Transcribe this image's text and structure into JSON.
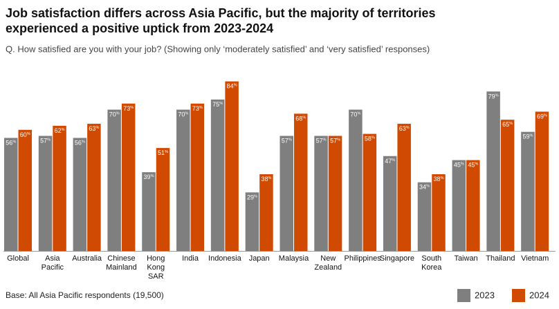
{
  "chart_data": {
    "type": "bar",
    "title": "Job satisfaction differs across Asia Pacific, but the majority of territories experienced a positive uptick from 2023-2024",
    "subtitle": "Q. How satisfied are you with your job? (Showing only ‘moderately satisfied’ and ‘very satisfied’ responses)",
    "footnote": "Base: All Asia Pacific respondents (19,500)",
    "categories": [
      "Global",
      "Asia Pacific",
      "Australia",
      "Chinese Mainland",
      "Hong Kong SAR",
      "India",
      "Indonesia",
      "Japan",
      "Malaysia",
      "New Zealand",
      "Philippines",
      "Singapore",
      "South Korea",
      "Taiwan",
      "Thailand",
      "Vietnam"
    ],
    "series": [
      {
        "name": "2023",
        "color": "#7f7f7f",
        "values": [
          56,
          57,
          56,
          70,
          39,
          70,
          75,
          29,
          57,
          57,
          70,
          47,
          34,
          45,
          79,
          59
        ],
        "value_labels": [
          "56%",
          "57%",
          "56%",
          "70%",
          "39%",
          "70%",
          "75%",
          "29%",
          "57%",
          "57%",
          "70%",
          "47%",
          "34%",
          "45%",
          "79%",
          "59%"
        ]
      },
      {
        "name": "2024",
        "color": "#d04a02",
        "values": [
          60,
          62,
          63,
          73,
          51,
          73,
          84,
          38,
          68,
          57,
          58,
          63,
          38,
          45,
          65,
          69
        ],
        "value_labels": [
          "60%",
          "62%",
          "63%",
          "73%",
          "51%",
          "73%",
          "84%",
          "38%",
          "68%",
          "57%",
          "58%",
          "63%",
          "38%",
          "45%",
          "65%",
          "69%"
        ]
      }
    ],
    "legend": "bottom-right"
  }
}
